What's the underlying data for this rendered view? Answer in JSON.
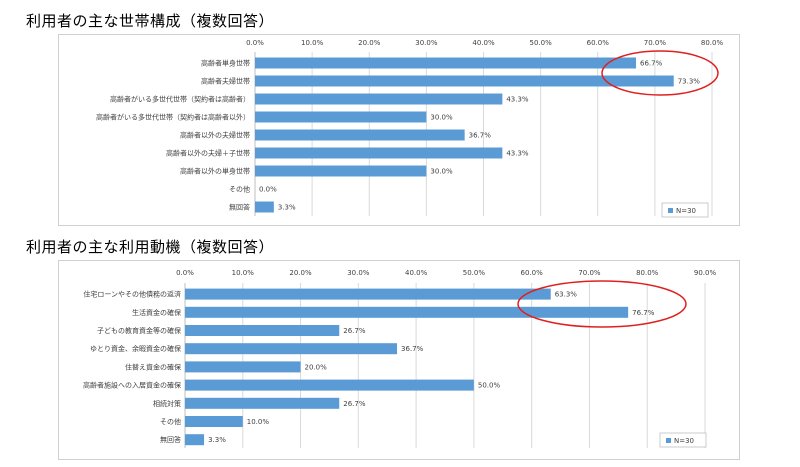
{
  "titles": {
    "chart1": "利用者の主な世帯構成（複数回答）",
    "chart2": "利用者の主な利用動機（複数回答）"
  },
  "colors": {
    "bar": "#5b9bd5",
    "grid": "#d9d9d9",
    "highlight_circle": "#e02020"
  },
  "chart_data": [
    {
      "type": "bar",
      "orientation": "horizontal",
      "title": "利用者の主な世帯構成（複数回答）",
      "categories": [
        "高齢者単身世帯",
        "高齢者夫婦世帯",
        "高齢者がいる多世代世帯（契約者は高齢者）",
        "高齢者がいる多世代世帯（契約者は高齢者以外）",
        "高齢者以外の夫婦世帯",
        "高齢者以外の夫婦＋子世帯",
        "高齢者以外の単身世帯",
        "その他",
        "無回答"
      ],
      "values": [
        66.7,
        73.3,
        43.3,
        30.0,
        36.7,
        43.3,
        30.0,
        0.0,
        3.3
      ],
      "value_labels": [
        "66.7%",
        "73.3%",
        "43.3%",
        "30.0%",
        "36.7%",
        "43.3%",
        "30.0%",
        "0.0%",
        "3.3%"
      ],
      "xlim": [
        0,
        80
      ],
      "ticks": [
        "0.0%",
        "10.0%",
        "20.0%",
        "30.0%",
        "40.0%",
        "50.0%",
        "60.0%",
        "70.0%",
        "80.0%"
      ],
      "series": [
        {
          "name": "N=30"
        }
      ],
      "legend": "bottom-right",
      "grid": true,
      "highlighted": [
        "高齢者単身世帯",
        "高齢者夫婦世帯"
      ]
    },
    {
      "type": "bar",
      "orientation": "horizontal",
      "title": "利用者の主な利用動機（複数回答）",
      "categories": [
        "住宅ローンやその他債務の返済",
        "生活資金の確保",
        "子どもの教育資金等の確保",
        "ゆとり資金、余暇資金の確保",
        "住替え資金の確保",
        "高齢者施設への入居資金の確保",
        "相続対策",
        "その他",
        "無回答"
      ],
      "values": [
        63.3,
        76.7,
        26.7,
        36.7,
        20.0,
        50.0,
        26.7,
        10.0,
        3.3
      ],
      "value_labels": [
        "63.3%",
        "76.7%",
        "26.7%",
        "36.7%",
        "20.0%",
        "50.0%",
        "26.7%",
        "10.0%",
        "3.3%"
      ],
      "xlim": [
        0,
        90
      ],
      "ticks": [
        "0.0%",
        "10.0%",
        "20.0%",
        "30.0%",
        "40.0%",
        "50.0%",
        "60.0%",
        "70.0%",
        "80.0%",
        "90.0%"
      ],
      "series": [
        {
          "name": "N=30"
        }
      ],
      "legend": "bottom-right",
      "grid": true,
      "highlighted": [
        "住宅ローンやその他債務の返済",
        "生活資金の確保"
      ]
    }
  ]
}
